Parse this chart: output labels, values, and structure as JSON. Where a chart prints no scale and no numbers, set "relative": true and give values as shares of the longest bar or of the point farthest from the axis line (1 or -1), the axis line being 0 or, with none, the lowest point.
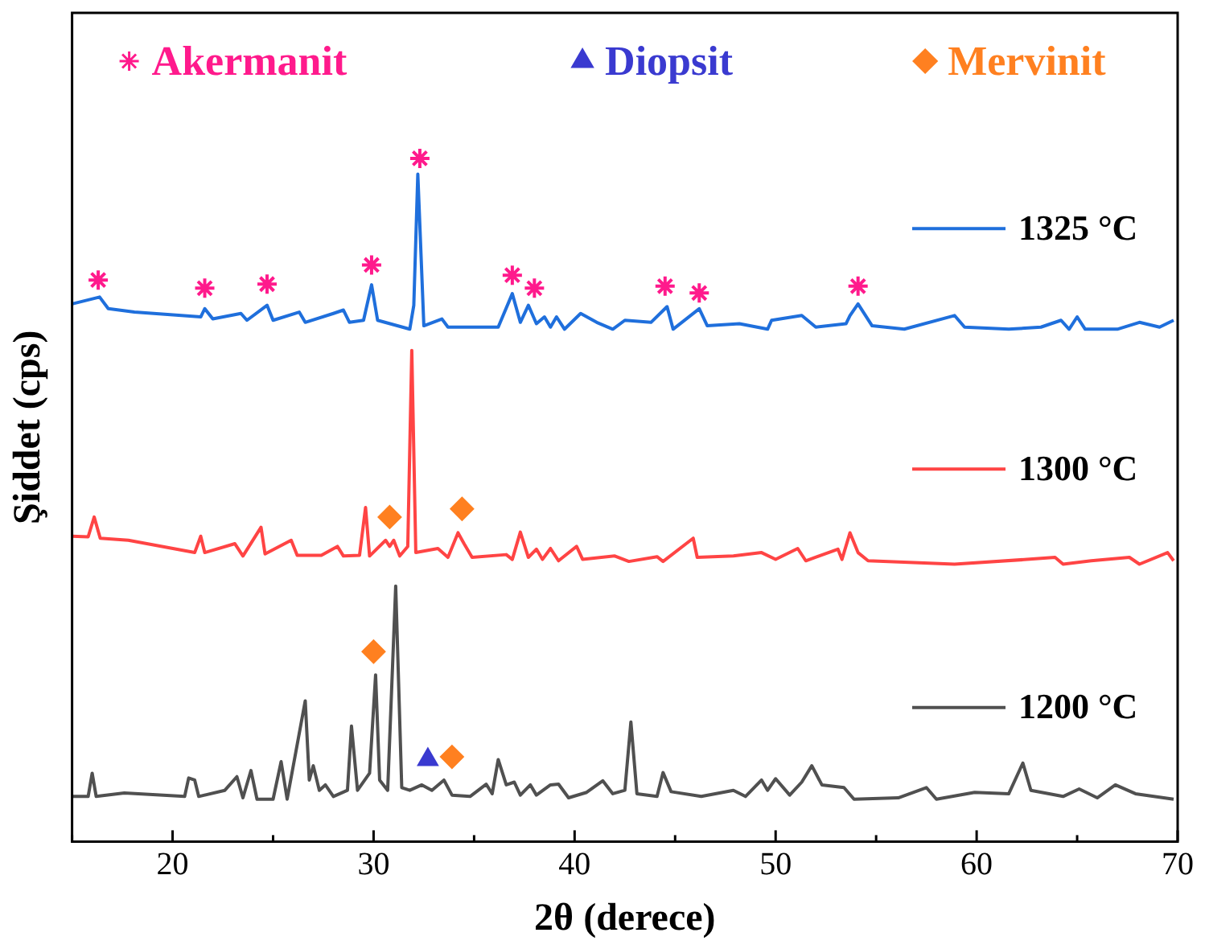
{
  "chart_data": {
    "type": "line",
    "xlabel": "2θ (derece)",
    "ylabel": "Şiddet (cps)",
    "relative": true,
    "xlim": [
      15,
      70
    ],
    "xticks": [
      {
        "value": 15,
        "label": null
      },
      20,
      {
        "value": 25,
        "label": null
      },
      30,
      {
        "value": 35,
        "label": null
      },
      40,
      {
        "value": 45,
        "label": null
      },
      50,
      {
        "value": 55,
        "label": null
      },
      60,
      {
        "value": 65,
        "label": null
      },
      70
    ],
    "grid": false,
    "legend": "top",
    "series": [
      {
        "name": "1325 °C",
        "type": "line",
        "marker": "none",
        "color": "#1f6fdc",
        "x": [
          15.0,
          16.37,
          16.8,
          18.1,
          21.4,
          21.6,
          22.0,
          23.4,
          23.7,
          24.7,
          25.0,
          26.3,
          26.6,
          28.0,
          28.5,
          28.8,
          29.5,
          29.9,
          30.2,
          31.8,
          32.0,
          32.2,
          32.5,
          33.4,
          33.7,
          36.2,
          36.9,
          37.3,
          37.7,
          38.1,
          38.5,
          38.8,
          39.1,
          39.5,
          40.3,
          41.1,
          41.9,
          42.5,
          43.8,
          44.6,
          44.9,
          46.2,
          46.6,
          48.2,
          49.6,
          49.8,
          51.3,
          52.0,
          53.5,
          53.7,
          54.1,
          54.8,
          56.4,
          58.9,
          59.4,
          61.6,
          63.2,
          64.2,
          64.6,
          65.0,
          65.4,
          67.0,
          68.1,
          69.1,
          69.8
        ],
        "values": [
          0.787,
          0.797,
          0.78,
          0.775,
          0.768,
          0.78,
          0.765,
          0.773,
          0.763,
          0.785,
          0.763,
          0.775,
          0.76,
          0.773,
          0.778,
          0.76,
          0.763,
          0.815,
          0.763,
          0.75,
          0.785,
          0.977,
          0.755,
          0.765,
          0.753,
          0.753,
          0.802,
          0.76,
          0.785,
          0.758,
          0.768,
          0.753,
          0.768,
          0.75,
          0.773,
          0.76,
          0.75,
          0.763,
          0.76,
          0.783,
          0.75,
          0.78,
          0.755,
          0.758,
          0.75,
          0.763,
          0.77,
          0.753,
          0.758,
          0.77,
          0.787,
          0.755,
          0.75,
          0.77,
          0.753,
          0.75,
          0.753,
          0.763,
          0.75,
          0.768,
          0.75,
          0.75,
          0.76,
          0.753,
          0.763
        ]
      },
      {
        "name": "1300 °C",
        "type": "line",
        "marker": "none",
        "color": "#ff4444",
        "x": [
          15.0,
          15.8,
          16.1,
          16.4,
          17.8,
          21.1,
          21.4,
          21.6,
          23.1,
          23.5,
          24.4,
          24.6,
          25.9,
          26.2,
          27.4,
          28.2,
          28.5,
          29.3,
          29.6,
          29.8,
          30.6,
          30.8,
          31.0,
          31.3,
          31.7,
          31.9,
          32.1,
          33.2,
          33.7,
          34.2,
          34.5,
          34.9,
          36.6,
          36.9,
          37.3,
          37.7,
          38.1,
          38.4,
          38.8,
          39.2,
          40.1,
          40.4,
          42.0,
          42.7,
          44.1,
          44.4,
          45.9,
          46.1,
          47.9,
          49.3,
          50.0,
          51.1,
          51.5,
          53.1,
          53.3,
          53.7,
          54.1,
          54.6,
          58.9,
          62.5,
          63.9,
          64.3,
          65.7,
          67.6,
          68.1,
          69.5,
          69.8
        ],
        "values": [
          0.447,
          0.446,
          0.475,
          0.444,
          0.441,
          0.423,
          0.447,
          0.423,
          0.436,
          0.418,
          0.46,
          0.421,
          0.441,
          0.419,
          0.419,
          0.432,
          0.418,
          0.419,
          0.489,
          0.418,
          0.441,
          0.432,
          0.441,
          0.418,
          0.432,
          0.719,
          0.423,
          0.429,
          0.416,
          0.452,
          0.436,
          0.416,
          0.42,
          0.413,
          0.453,
          0.416,
          0.428,
          0.413,
          0.429,
          0.411,
          0.432,
          0.413,
          0.418,
          0.41,
          0.417,
          0.41,
          0.444,
          0.416,
          0.418,
          0.423,
          0.413,
          0.429,
          0.411,
          0.428,
          0.413,
          0.452,
          0.423,
          0.411,
          0.406,
          0.413,
          0.416,
          0.406,
          0.411,
          0.416,
          0.406,
          0.423,
          0.411
        ]
      },
      {
        "name": "1200 °C",
        "type": "line",
        "marker": "none",
        "color": "#505050",
        "x": [
          15.0,
          15.8,
          16.0,
          16.2,
          17.6,
          20.6,
          20.8,
          21.1,
          21.3,
          22.6,
          23.2,
          23.5,
          23.9,
          24.2,
          25.0,
          25.4,
          25.7,
          26.6,
          26.8,
          27.0,
          27.3,
          27.6,
          28.0,
          28.7,
          28.9,
          29.2,
          29.8,
          30.1,
          30.3,
          30.7,
          31.1,
          31.4,
          31.8,
          32.4,
          32.9,
          33.5,
          33.9,
          34.8,
          35.6,
          35.9,
          36.2,
          36.6,
          37.0,
          37.3,
          37.8,
          38.1,
          38.8,
          39.2,
          39.7,
          40.6,
          41.4,
          41.9,
          42.5,
          42.8,
          43.1,
          44.1,
          44.4,
          44.8,
          46.3,
          47.9,
          48.5,
          49.3,
          49.6,
          50.0,
          50.7,
          51.3,
          51.8,
          52.3,
          53.4,
          53.9,
          56.1,
          57.5,
          58.0,
          59.9,
          61.6,
          62.3,
          62.7,
          64.3,
          65.1,
          66.0,
          66.9,
          67.9,
          69.8
        ],
        "values": [
          0.066,
          0.066,
          0.1,
          0.066,
          0.071,
          0.066,
          0.093,
          0.09,
          0.066,
          0.075,
          0.095,
          0.064,
          0.104,
          0.062,
          0.062,
          0.117,
          0.062,
          0.206,
          0.09,
          0.111,
          0.075,
          0.083,
          0.066,
          0.075,
          0.169,
          0.075,
          0.1,
          0.244,
          0.09,
          0.075,
          0.374,
          0.079,
          0.075,
          0.083,
          0.075,
          0.09,
          0.068,
          0.066,
          0.084,
          0.07,
          0.12,
          0.083,
          0.087,
          0.068,
          0.083,
          0.068,
          0.083,
          0.084,
          0.064,
          0.072,
          0.089,
          0.07,
          0.075,
          0.175,
          0.07,
          0.066,
          0.101,
          0.073,
          0.066,
          0.075,
          0.066,
          0.09,
          0.075,
          0.092,
          0.068,
          0.087,
          0.111,
          0.083,
          0.079,
          0.062,
          0.064,
          0.079,
          0.062,
          0.072,
          0.07,
          0.115,
          0.075,
          0.066,
          0.077,
          0.064,
          0.083,
          0.07,
          0.062
        ]
      },
      {
        "name": "Akermanit",
        "type": "scatter",
        "marker": "cross",
        "color": "#ff1a8c",
        "x": [
          16.3,
          21.6,
          24.7,
          29.9,
          32.3,
          36.9,
          38.0,
          44.5,
          46.2,
          54.1
        ],
        "values": [
          0.822,
          0.81,
          0.816,
          0.844,
          1,
          0.829,
          0.81,
          0.813,
          0.803,
          0.813
        ]
      },
      {
        "name": "Diopsit",
        "type": "scatter",
        "marker": "triangle",
        "color": "#3a3ad0",
        "x": [
          32.7
        ],
        "values": [
          0.12
        ]
      },
      {
        "name": "Mervinit",
        "type": "scatter",
        "marker": "diamond",
        "color": "#ff8020",
        "x": [
          30.8,
          34.4,
          30.0,
          33.9
        ],
        "values": [
          0.475,
          0.487,
          0.278,
          0.124
        ]
      }
    ]
  }
}
